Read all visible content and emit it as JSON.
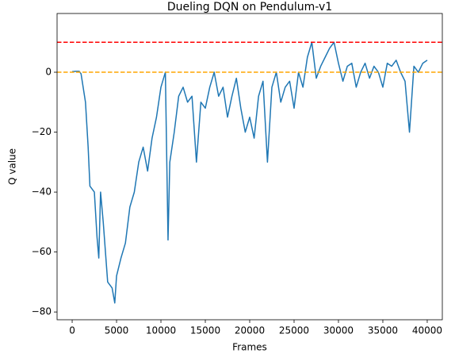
{
  "chart_data": {
    "type": "line",
    "title": "Dueling DQN on Pendulum-v1",
    "x_label": "Frames",
    "y_label": "Q value",
    "xlim": [
      -1700,
      41700
    ],
    "ylim": [
      -82.6,
      19.6
    ],
    "xticks": [
      0,
      5000,
      10000,
      15000,
      20000,
      25000,
      30000,
      35000,
      40000
    ],
    "yticks": [
      {
        "value": -80,
        "label": "−80"
      },
      {
        "value": -60,
        "label": "−60"
      },
      {
        "value": -40,
        "label": "−40"
      },
      {
        "value": -20,
        "label": "−20"
      },
      0
    ],
    "hlines": [
      {
        "y": 10,
        "color": "#ff0000"
      },
      {
        "y": 0,
        "color": "#ffa500"
      }
    ],
    "x": [
      0,
      400,
      800,
      1000,
      1500,
      1800,
      2000,
      2500,
      2800,
      3000,
      3200,
      3500,
      4000,
      4500,
      4800,
      5000,
      5500,
      6000,
      6500,
      7000,
      7500,
      8000,
      8500,
      9000,
      9500,
      10000,
      10500,
      10800,
      11000,
      11500,
      12000,
      12500,
      13000,
      13500,
      14000,
      14500,
      15000,
      15500,
      16000,
      16500,
      17000,
      17500,
      18000,
      18500,
      19000,
      19500,
      20000,
      20500,
      21000,
      21500,
      22000,
      22500,
      23000,
      23500,
      24000,
      24500,
      25000,
      25500,
      26000,
      26500,
      27000,
      27500,
      28000,
      28500,
      29000,
      29500,
      30000,
      30500,
      31000,
      31500,
      32000,
      32500,
      33000,
      33500,
      34000,
      34500,
      35000,
      35500,
      36000,
      36500,
      37000,
      37500,
      38000,
      38500,
      39000,
      39500,
      40000
    ],
    "series": [
      {
        "name": "Q value",
        "color": "#1f77b4",
        "values": [
          0.2,
          0.3,
          0.3,
          -0.5,
          -10,
          -25,
          -38,
          -40,
          -55,
          -62,
          -40,
          -50,
          -70,
          -72,
          -77,
          -68,
          -62,
          -57,
          -45,
          -40,
          -30,
          -25,
          -33,
          -22,
          -15,
          -5,
          0,
          -56,
          -30,
          -20,
          -8,
          -5,
          -10,
          -8,
          -30,
          -10,
          -12,
          -5,
          0,
          -8,
          -5,
          -15,
          -8,
          -2,
          -12,
          -20,
          -15,
          -22,
          -8,
          -3,
          -30,
          -5,
          0,
          -10,
          -5,
          -3,
          -12,
          0,
          -5,
          5,
          10,
          -2,
          2,
          5,
          8,
          10,
          3,
          -3,
          2,
          3,
          -5,
          0,
          3,
          -2,
          2,
          0,
          -5,
          3,
          2,
          4,
          0,
          -3,
          -20,
          2,
          0,
          3,
          4
        ]
      }
    ]
  }
}
